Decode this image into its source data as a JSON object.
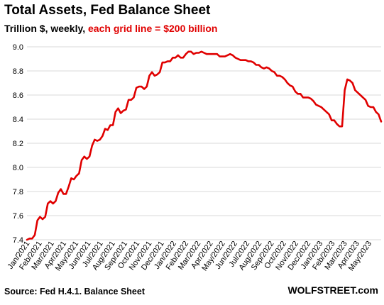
{
  "chart_data": {
    "type": "line",
    "title": "Total Assets, Fed Balance Sheet",
    "subtitle_black": "Trillion $, weekly, ",
    "subtitle_red": "each grid line = $200 billion",
    "source": "Source: Fed H.4.1. Balance Sheet",
    "brand": "WOLFSTREET.com",
    "ylim": [
      7.4,
      9.0
    ],
    "yticks": [
      "7.4",
      "7.6",
      "7.8",
      "8.0",
      "8.2",
      "8.4",
      "8.6",
      "8.8",
      "9.0"
    ],
    "xlabels": [
      "Jan/2021",
      "Feb/2021",
      "Mar/2021",
      "Apr/2021",
      "May/2021",
      "Jun/2021",
      "Jul/2021",
      "Aug/2021",
      "Sep/2021",
      "Oct/2021",
      "Nov/2021",
      "Dec/2021",
      "Jan/2022",
      "Feb/2022",
      "Mar/2022",
      "Apr/2022",
      "May/2022",
      "Jun/2022",
      "Jul/2022",
      "Aug/2022",
      "Sep/2022",
      "Oct/2022",
      "Nov/2022",
      "Dec/2022",
      "Jan/2023",
      "Feb/2023",
      "Mar/2023",
      "Apr/2023",
      "May/2023"
    ],
    "grid": "horizontal",
    "line_color": "#e00000",
    "series": [
      {
        "values": [
          7.4,
          7.41,
          7.41,
          7.44,
          7.56,
          7.59,
          7.57,
          7.59,
          7.7,
          7.72,
          7.7,
          7.72,
          7.79,
          7.82,
          7.78,
          7.78,
          7.84,
          7.91,
          7.9,
          7.93,
          7.95,
          8.06,
          8.09,
          8.07,
          8.09,
          8.18,
          8.23,
          8.22,
          8.23,
          8.26,
          8.32,
          8.31,
          8.35,
          8.35,
          8.46,
          8.49,
          8.45,
          8.47,
          8.48,
          8.56,
          8.56,
          8.58,
          8.66,
          8.67,
          8.67,
          8.65,
          8.67,
          8.76,
          8.79,
          8.76,
          8.77,
          8.79,
          8.87,
          8.87,
          8.88,
          8.88,
          8.91,
          8.91,
          8.93,
          8.91,
          8.91,
          8.94,
          8.96,
          8.96,
          8.94,
          8.95,
          8.95,
          8.96,
          8.95,
          8.94,
          8.94,
          8.94,
          8.94,
          8.94,
          8.92,
          8.92,
          8.92,
          8.93,
          8.94,
          8.93,
          8.91,
          8.9,
          8.89,
          8.89,
          8.89,
          8.88,
          8.88,
          8.87,
          8.85,
          8.85,
          8.83,
          8.82,
          8.83,
          8.82,
          8.8,
          8.79,
          8.76,
          8.76,
          8.75,
          8.73,
          8.7,
          8.68,
          8.67,
          8.63,
          8.61,
          8.61,
          8.58,
          8.58,
          8.58,
          8.57,
          8.55,
          8.52,
          8.51,
          8.5,
          8.48,
          8.46,
          8.44,
          8.39,
          8.39,
          8.36,
          8.34,
          8.34,
          8.64,
          8.73,
          8.72,
          8.7,
          8.64,
          8.62,
          8.6,
          8.58,
          8.56,
          8.51,
          8.5,
          8.5,
          8.46,
          8.44,
          8.38
        ]
      }
    ]
  }
}
